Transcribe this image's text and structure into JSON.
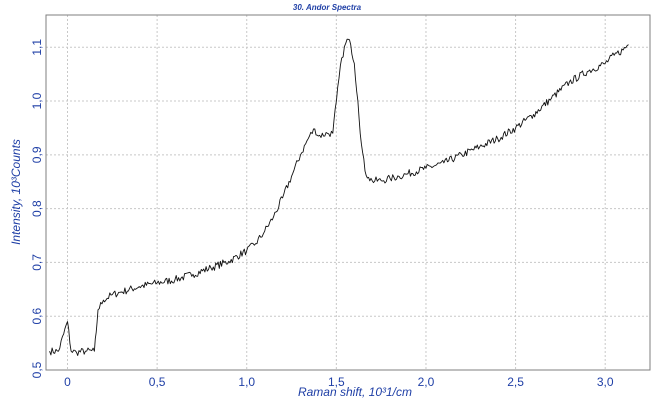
{
  "chart_data": {
    "type": "line",
    "title": "30. Andor Spectra",
    "xlabel": "Raman shift, 10³1/cm",
    "ylabel": "Intensity, 10³Counts",
    "xlim": [
      -0.12,
      3.25
    ],
    "ylim": [
      0.5,
      1.16
    ],
    "xticks": [
      0,
      0.5,
      1.0,
      1.5,
      2.0,
      2.5,
      3.0
    ],
    "xtick_labels": [
      "0",
      "0,5",
      "1,0",
      "1,5",
      "2,0",
      "2,5",
      "3,0"
    ],
    "yticks": [
      0.5,
      0.6,
      0.7,
      0.8,
      0.9,
      1.0,
      1.1
    ],
    "ytick_labels": [
      "0,5",
      "0,6",
      "0,7",
      "0,8",
      "0,9",
      "1,0",
      "1,1"
    ],
    "grid": true,
    "colors": {
      "line": "#111111",
      "text": "#1f3fa6",
      "grid": "#c8c8c8"
    },
    "series": [
      {
        "x": [
          -0.1,
          -0.05,
          0.0,
          0.02,
          0.05,
          0.1,
          0.15,
          0.16,
          0.17,
          0.2,
          0.25,
          0.3,
          0.4,
          0.5,
          0.6,
          0.7,
          0.8,
          0.9,
          1.0,
          1.05,
          1.1,
          1.15,
          1.2,
          1.25,
          1.3,
          1.35,
          1.38,
          1.4,
          1.45,
          1.48,
          1.5,
          1.53,
          1.56,
          1.58,
          1.6,
          1.62,
          1.64,
          1.66,
          1.68,
          1.7,
          1.75,
          1.8,
          1.85,
          1.9,
          2.0,
          2.1,
          2.2,
          2.3,
          2.4,
          2.5,
          2.6,
          2.7,
          2.8,
          2.9,
          3.0,
          3.05,
          3.1,
          3.13
        ],
        "values": [
          0.535,
          0.535,
          0.59,
          0.535,
          0.533,
          0.535,
          0.535,
          0.57,
          0.612,
          0.63,
          0.64,
          0.645,
          0.655,
          0.662,
          0.668,
          0.678,
          0.69,
          0.702,
          0.722,
          0.735,
          0.758,
          0.785,
          0.82,
          0.86,
          0.9,
          0.935,
          0.948,
          0.935,
          0.94,
          0.94,
          1.0,
          1.08,
          1.115,
          1.105,
          1.07,
          1.0,
          0.92,
          0.87,
          0.858,
          0.852,
          0.852,
          0.856,
          0.86,
          0.865,
          0.875,
          0.885,
          0.9,
          0.915,
          0.93,
          0.95,
          0.975,
          1.005,
          1.035,
          1.055,
          1.07,
          1.085,
          1.095,
          1.105
        ]
      }
    ]
  }
}
